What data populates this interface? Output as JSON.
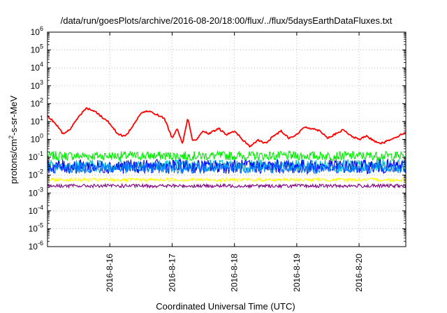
{
  "chart_data": {
    "type": "line",
    "title": "/data/run/goesPlots/archive/2016-08-20/18:00/flux/../flux/5daysEarthDataFluxes.txt",
    "xlabel": "Coordinated Universal Time (UTC)",
    "ylabel_parts": [
      "protons/cm",
      "2",
      "-s-sr-MeV"
    ],
    "y_scale": "log",
    "ylim": [
      1e-06,
      1000000.0
    ],
    "y_ticks": [
      {
        "base": "10",
        "exp": "-6",
        "value": 1e-06
      },
      {
        "base": "10",
        "exp": "-5",
        "value": 1e-05
      },
      {
        "base": "10",
        "exp": "-4",
        "value": 0.0001
      },
      {
        "base": "10",
        "exp": "-3",
        "value": 0.001
      },
      {
        "base": "10",
        "exp": "-2",
        "value": 0.01
      },
      {
        "base": "10",
        "exp": "-1",
        "value": 0.1
      },
      {
        "base": "10",
        "exp": "0",
        "value": 1
      },
      {
        "base": "10",
        "exp": "1",
        "value": 10
      },
      {
        "base": "10",
        "exp": "2",
        "value": 100
      },
      {
        "base": "10",
        "exp": "3",
        "value": 1000
      },
      {
        "base": "10",
        "exp": "4",
        "value": 10000
      },
      {
        "base": "10",
        "exp": "5",
        "value": 100000
      },
      {
        "base": "10",
        "exp": "6",
        "value": 1000000
      }
    ],
    "xlim": [
      "2016-08-15T00:00",
      "2016-08-20T18:00"
    ],
    "x_ticks": [
      {
        "label": "2016-8-16",
        "date": "2016-08-16T00:00"
      },
      {
        "label": "2016-8-17",
        "date": "2016-08-17T00:00"
      },
      {
        "label": "2016-8-18",
        "date": "2016-08-18T00:00"
      },
      {
        "label": "2016-8-19",
        "date": "2016-08-19T00:00"
      },
      {
        "label": "2016-8-20",
        "date": "2016-08-20T00:00"
      }
    ],
    "grid": true,
    "series": [
      {
        "color": "#ff0000",
        "noise": 0.05,
        "x": [
          "2016-08-15T00:00",
          "2016-08-15T03:00",
          "2016-08-15T06:00",
          "2016-08-15T09:00",
          "2016-08-15T12:00",
          "2016-08-15T15:00",
          "2016-08-15T18:00",
          "2016-08-15T21:00",
          "2016-08-16T00:00",
          "2016-08-16T03:00",
          "2016-08-16T06:00",
          "2016-08-16T09:00",
          "2016-08-16T12:00",
          "2016-08-16T15:00",
          "2016-08-16T18:00",
          "2016-08-16T21:00",
          "2016-08-17T00:00",
          "2016-08-17T02:00",
          "2016-08-17T04:00",
          "2016-08-17T06:00",
          "2016-08-17T08:00",
          "2016-08-17T10:00",
          "2016-08-17T12:00",
          "2016-08-17T14:00",
          "2016-08-17T18:00",
          "2016-08-17T21:00",
          "2016-08-18T00:00",
          "2016-08-18T03:00",
          "2016-08-18T06:00",
          "2016-08-18T09:00",
          "2016-08-18T12:00",
          "2016-08-18T15:00",
          "2016-08-18T18:00",
          "2016-08-18T21:00",
          "2016-08-19T00:00",
          "2016-08-19T03:00",
          "2016-08-19T06:00",
          "2016-08-19T09:00",
          "2016-08-19T12:00",
          "2016-08-19T15:00",
          "2016-08-19T18:00",
          "2016-08-19T21:00",
          "2016-08-20T00:00",
          "2016-08-20T03:00",
          "2016-08-20T06:00",
          "2016-08-20T09:00",
          "2016-08-20T12:00",
          "2016-08-20T15:00",
          "2016-08-20T18:00"
        ],
        "values": [
          20,
          8,
          2,
          4,
          20,
          55,
          40,
          18,
          8,
          2,
          1.5,
          6,
          30,
          38,
          25,
          15,
          1.2,
          4,
          0.6,
          15,
          0.8,
          1.2,
          3,
          2,
          4,
          1.8,
          3,
          1,
          0.4,
          0.9,
          0.6,
          1.5,
          3,
          1.2,
          1.8,
          5,
          4,
          3,
          1.2,
          2,
          3.5,
          1.5,
          1,
          1.5,
          0.8,
          0.6,
          1,
          1.5,
          2.5
        ]
      },
      {
        "color": "#00ee00",
        "level": 0.12,
        "spread": 1.8,
        "x": [],
        "values": []
      },
      {
        "color": "#00bfbf",
        "level": 0.035,
        "spread": 2.2,
        "x": [],
        "values": []
      },
      {
        "color": "#0000ff",
        "level": 0.03,
        "spread": 2.5,
        "x": [],
        "values": []
      },
      {
        "color": "#0080ff",
        "level": 0.025,
        "spread": 2.0,
        "x": [],
        "values": []
      },
      {
        "color": "#ffff00",
        "level": 0.0055,
        "spread": 1.25,
        "x": [],
        "values": []
      },
      {
        "color": "#800080",
        "level": 0.0025,
        "spread": 1.25,
        "x": [],
        "values": []
      }
    ]
  }
}
